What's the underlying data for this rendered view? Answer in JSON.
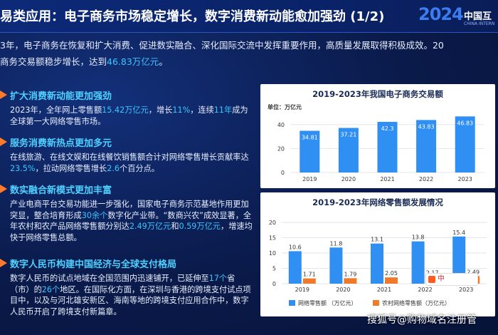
{
  "header": {
    "title": "易类应用：电子商务市场稳定增长，数字消费新动能愈加强劲   (1/2)",
    "logo_num": "2024",
    "logo_cn": "中国互",
    "logo_en": "CHINA INTERN"
  },
  "intro": {
    "line1": "3年，电子商务在恢复和扩大消费、促进数实融合、深化国际交流中发挥重要作用，高质量发展取得积极成效。20",
    "line2_pre": "商务交易额稳步增长，达到",
    "line2_hl": "46.83万亿元",
    "line2_post": "。"
  },
  "sections": [
    {
      "title": "扩大消费新动能更加强劲",
      "body": [
        {
          "t": "2023年，全年网上零售额"
        },
        {
          "t": "15.42万亿元",
          "h": true
        },
        {
          "t": "，增长"
        },
        {
          "t": "11%",
          "h": true
        },
        {
          "t": "，连续"
        },
        {
          "t": "11年",
          "h": true
        },
        {
          "t": "成为全球第一大网络零售市场。"
        }
      ]
    },
    {
      "title": "服务消费新热点更加多元",
      "body": [
        {
          "t": "在线旅游、在线文娱和在线餐饮销售额合计对网络零售增长贡献率达"
        },
        {
          "t": "23.5%",
          "h": true
        },
        {
          "t": "，拉动网络零售增长"
        },
        {
          "t": "2.6",
          "h": true
        },
        {
          "t": "个百分点。"
        }
      ]
    },
    {
      "title": "数实融合新模式更加丰富",
      "body": [
        {
          "t": "产业电商平台交易功能进一步强化，国家电子商务示范基地作用更加突显，整合培育形成"
        },
        {
          "t": "30余个",
          "h": true
        },
        {
          "t": "数字化产业带。“数商兴农”成效显著，全年农村和农产品网络零售额分别达"
        },
        {
          "t": "2.49万亿元",
          "h": true
        },
        {
          "t": "和"
        },
        {
          "t": "0.59万亿元",
          "h": true
        },
        {
          "t": "，增速均快于网络零售总额。"
        }
      ]
    },
    {
      "title": "数字人民币构建中国经济与全球支付格局",
      "body": [
        {
          "t": "数字人民币的试点地域在全国范围内迅速铺开，已延伸至"
        },
        {
          "t": "17个",
          "h": true
        },
        {
          "t": "省（市）的"
        },
        {
          "t": "26个",
          "h": true
        },
        {
          "t": "地区。在国际化方面，在深圳与香港的跨境支付试点项目中，以及与河北雄安新区、海南等地的跨境支付应用合作中，数字人民币开启了跨境支付新篇章。"
        }
      ]
    }
  ],
  "chart_data": [
    {
      "type": "bar",
      "title": "2019-2023年我国电子商务交易额",
      "ylabel": "单位：万亿元",
      "categories": [
        "2019",
        "2020",
        "2021",
        "2022",
        "2023"
      ],
      "values": [
        34.81,
        37.21,
        42.3,
        43.83,
        46.83
      ],
      "value_labels": [
        "34.81",
        "37.21",
        "42.3",
        "43.83",
        "46.83"
      ],
      "y_ticks": [
        "0",
        "20",
        "40"
      ],
      "ylim": [
        0,
        50
      ],
      "color": "#2f8ff2"
    },
    {
      "type": "bar",
      "title": "2019-2023年网络零售额发展情况",
      "categories": [
        "2019",
        "2020",
        "2021",
        "2022",
        "2023"
      ],
      "series": [
        {
          "name": "网络零售额 （万亿元）",
          "values": [
            10.6,
            11.8,
            13.1,
            13.8,
            15.4
          ],
          "labels": [
            "10.6",
            "11.8",
            "13.1",
            "13.8",
            "15.4"
          ],
          "color": "#2f8ff2"
        },
        {
          "name": "农村网络零售额（万亿元）",
          "values": [
            1.71,
            1.79,
            2.05,
            2.17,
            2.49
          ],
          "labels": [
            "1.71",
            "1.79",
            "2.05",
            "2.17",
            "2.49"
          ],
          "color": "#f07a2a"
        }
      ],
      "y_ticks": [
        "0",
        "5",
        "10",
        "15",
        "20"
      ],
      "ylim": [
        0,
        20
      ],
      "legend": "bottom"
    }
  ],
  "overlay": {
    "badge": "中",
    "watermark": "搜狐号@购物域名注册管"
  }
}
